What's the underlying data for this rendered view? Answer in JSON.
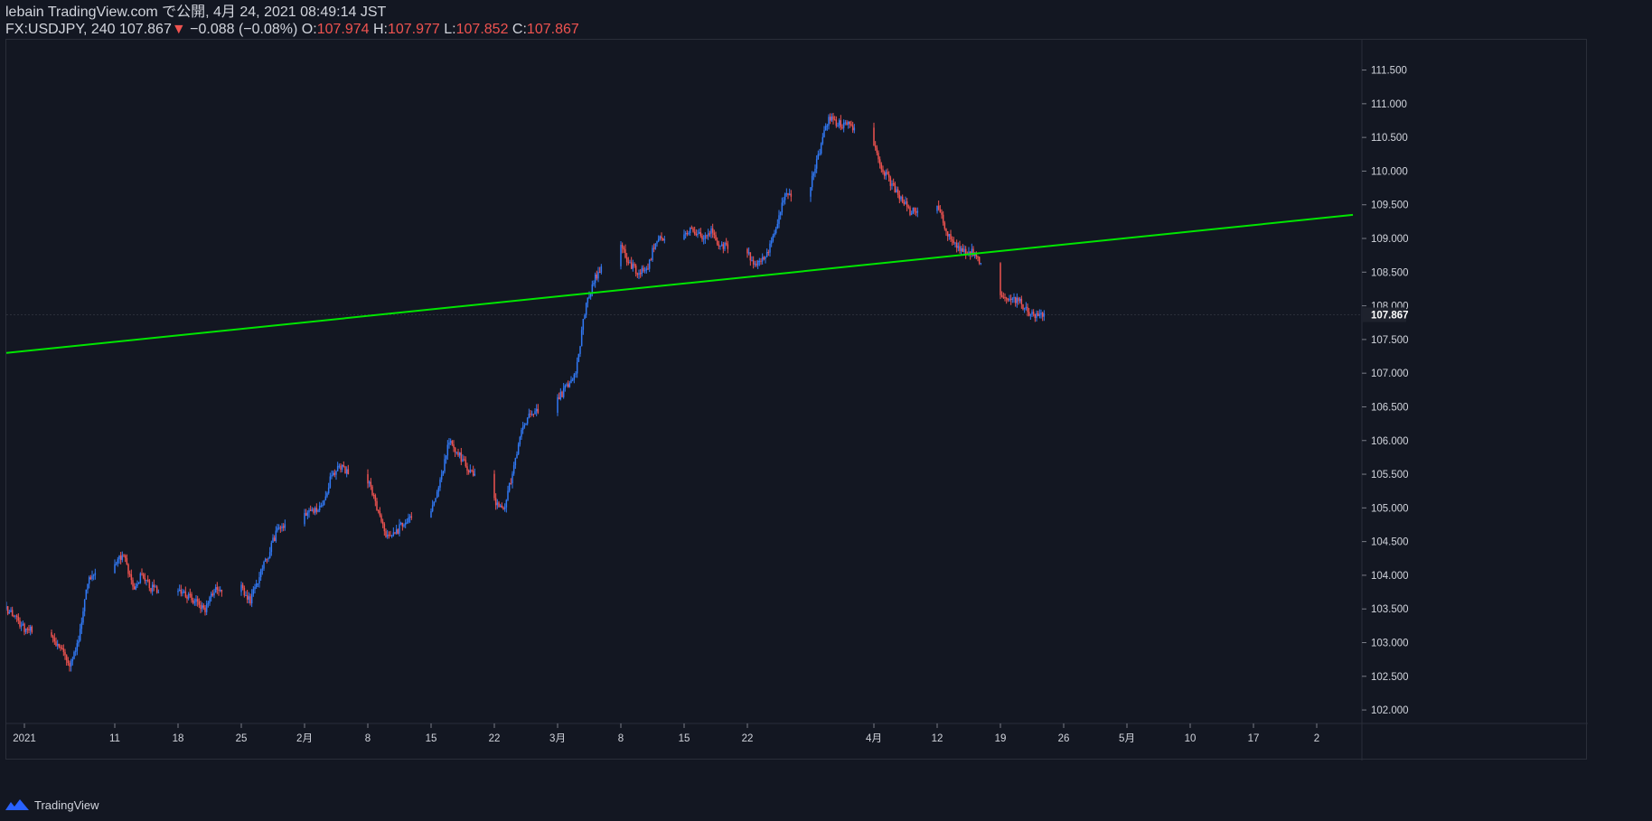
{
  "header": {
    "publish_line": "lebain TradingView.com で公開, 4月 24, 2021 08:49:14 JST",
    "symbol": "FX:USDJPY, 240",
    "last": "107.867",
    "arrow": "▼",
    "change": "−0.088 (−0.08%)",
    "o_label": "O:",
    "o_value": "107.974",
    "h_label": "H:",
    "h_value": "107.977",
    "l_label": "L:",
    "l_value": "107.852",
    "c_label": "C:",
    "c_value": "107.867"
  },
  "footer": {
    "brand": "TradingView",
    "logo_icon": "tradingview-logo-icon"
  },
  "colors": {
    "background": "#131722",
    "up": "#2962ff",
    "up_body": "#3179f5",
    "down": "#ef5350",
    "trendline": "#00e600",
    "axis_text": "#d1d4dc",
    "border": "#2a2e39"
  },
  "chart_data": {
    "type": "candlestick",
    "symbol": "FX:USDJPY",
    "interval": "240",
    "ylim": [
      101.8,
      111.95
    ],
    "y_ticks": [
      102.0,
      102.5,
      103.0,
      103.5,
      104.0,
      104.5,
      105.0,
      105.5,
      106.0,
      106.5,
      107.0,
      107.5,
      108.0,
      108.5,
      109.0,
      109.5,
      110.0,
      110.5,
      111.0,
      111.5
    ],
    "y_tick_labels": [
      "102.000",
      "102.500",
      "103.000",
      "103.500",
      "104.000",
      "104.500",
      "105.000",
      "105.500",
      "106.000",
      "106.500",
      "107.000",
      "107.500",
      "108.000",
      "108.500",
      "109.000",
      "109.500",
      "110.000",
      "110.500",
      "111.000",
      "111.500"
    ],
    "x_date_range": [
      "2020-12-30",
      "2021-05-29"
    ],
    "x_ticks": [
      {
        "date": "2021-01-01",
        "label": "2021"
      },
      {
        "date": "2021-01-11",
        "label": "11"
      },
      {
        "date": "2021-01-18",
        "label": "18"
      },
      {
        "date": "2021-01-25",
        "label": "25"
      },
      {
        "date": "2021-02-01",
        "label": "2月"
      },
      {
        "date": "2021-02-08",
        "label": "8"
      },
      {
        "date": "2021-02-15",
        "label": "15"
      },
      {
        "date": "2021-02-22",
        "label": "22"
      },
      {
        "date": "2021-03-01",
        "label": "3月"
      },
      {
        "date": "2021-03-08",
        "label": "8"
      },
      {
        "date": "2021-03-15",
        "label": "15"
      },
      {
        "date": "2021-03-22",
        "label": "22"
      },
      {
        "date": "2021-04-05",
        "label": "4月"
      },
      {
        "date": "2021-04-12",
        "label": "12"
      },
      {
        "date": "2021-04-19",
        "label": "19"
      },
      {
        "date": "2021-04-26",
        "label": "26"
      },
      {
        "date": "2021-05-03",
        "label": "5月"
      },
      {
        "date": "2021-05-10",
        "label": "10"
      },
      {
        "date": "2021-05-17",
        "label": "17"
      },
      {
        "date": "2021-05-24",
        "label": "2"
      }
    ],
    "price_path": [
      [
        "2020-12-30",
        103.5
      ],
      [
        "2021-01-01",
        103.2
      ],
      [
        "2021-01-04",
        103.1
      ],
      [
        "2021-01-05",
        102.9
      ],
      [
        "2021-01-06",
        102.7
      ],
      [
        "2021-01-07",
        103.0
      ],
      [
        "2021-01-08",
        103.9
      ],
      [
        "2021-01-11",
        104.2
      ],
      [
        "2021-01-12",
        104.3
      ],
      [
        "2021-01-13",
        103.8
      ],
      [
        "2021-01-14",
        104.0
      ],
      [
        "2021-01-15",
        103.8
      ],
      [
        "2021-01-18",
        103.8
      ],
      [
        "2021-01-20",
        103.6
      ],
      [
        "2021-01-21",
        103.5
      ],
      [
        "2021-01-22",
        103.8
      ],
      [
        "2021-01-25",
        103.8
      ],
      [
        "2021-01-26",
        103.6
      ],
      [
        "2021-01-27",
        104.0
      ],
      [
        "2021-01-28",
        104.3
      ],
      [
        "2021-01-29",
        104.7
      ],
      [
        "2021-02-01",
        104.9
      ],
      [
        "2021-02-03",
        105.0
      ],
      [
        "2021-02-04",
        105.5
      ],
      [
        "2021-02-05",
        105.6
      ],
      [
        "2021-02-08",
        105.4
      ],
      [
        "2021-02-09",
        105.0
      ],
      [
        "2021-02-10",
        104.6
      ],
      [
        "2021-02-11",
        104.6
      ],
      [
        "2021-02-12",
        104.8
      ],
      [
        "2021-02-15",
        105.0
      ],
      [
        "2021-02-16",
        105.4
      ],
      [
        "2021-02-17",
        106.0
      ],
      [
        "2021-02-18",
        105.8
      ],
      [
        "2021-02-19",
        105.6
      ],
      [
        "2021-02-22",
        105.1
      ],
      [
        "2021-02-23",
        104.95
      ],
      [
        "2021-02-24",
        105.5
      ],
      [
        "2021-02-25",
        106.1
      ],
      [
        "2021-02-26",
        106.4
      ],
      [
        "2021-03-01",
        106.6
      ],
      [
        "2021-03-02",
        106.8
      ],
      [
        "2021-03-03",
        107.0
      ],
      [
        "2021-03-04",
        107.9
      ],
      [
        "2021-03-05",
        108.4
      ],
      [
        "2021-03-08",
        108.9
      ],
      [
        "2021-03-09",
        108.6
      ],
      [
        "2021-03-10",
        108.5
      ],
      [
        "2021-03-11",
        108.6
      ],
      [
        "2021-03-12",
        109.0
      ],
      [
        "2021-03-15",
        109.1
      ],
      [
        "2021-03-16",
        109.1
      ],
      [
        "2021-03-17",
        109.0
      ],
      [
        "2021-03-18",
        109.1
      ],
      [
        "2021-03-19",
        108.9
      ],
      [
        "2021-03-22",
        108.8
      ],
      [
        "2021-03-23",
        108.6
      ],
      [
        "2021-03-24",
        108.7
      ],
      [
        "2021-03-25",
        109.1
      ],
      [
        "2021-03-26",
        109.6
      ],
      [
        "2021-03-29",
        109.8
      ],
      [
        "2021-03-30",
        110.3
      ],
      [
        "2021-03-31",
        110.8
      ],
      [
        "2021-04-01",
        110.7
      ],
      [
        "2021-04-02",
        110.7
      ],
      [
        "2021-04-05",
        110.4
      ],
      [
        "2021-04-06",
        110.0
      ],
      [
        "2021-04-07",
        109.8
      ],
      [
        "2021-04-08",
        109.6
      ],
      [
        "2021-04-09",
        109.4
      ],
      [
        "2021-04-12",
        109.5
      ],
      [
        "2021-04-13",
        109.1
      ],
      [
        "2021-04-14",
        108.9
      ],
      [
        "2021-04-15",
        108.8
      ],
      [
        "2021-04-16",
        108.8
      ],
      [
        "2021-04-19",
        108.2
      ],
      [
        "2021-04-20",
        108.1
      ],
      [
        "2021-04-21",
        108.1
      ],
      [
        "2021-04-22",
        107.9
      ],
      [
        "2021-04-23",
        107.867
      ]
    ],
    "last_price_label": "107.867",
    "trendline": {
      "color": "#00e600",
      "points": [
        [
          "2020-12-30",
          107.3
        ],
        [
          "2021-05-28",
          109.35
        ]
      ]
    }
  }
}
